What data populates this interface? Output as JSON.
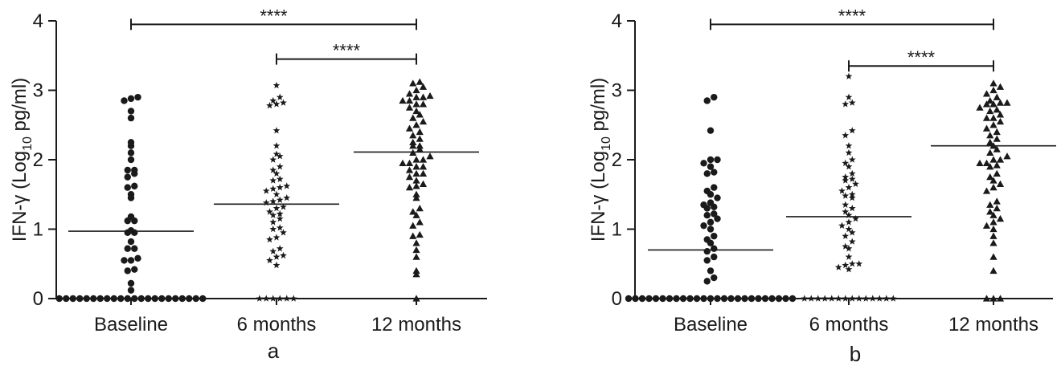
{
  "chart_data": [
    {
      "type": "scatter",
      "panel_label": "a",
      "ylabel_main": "IFN-γ (Log",
      "ylabel_sub": "10",
      "ylabel_tail": " pg/ml)",
      "categories": [
        "Baseline",
        "6 months",
        "12 months"
      ],
      "ylim": [
        0,
        4
      ],
      "yticks": [
        "0",
        "1",
        "2",
        "3",
        "4"
      ],
      "grid": false,
      "legend": "none",
      "significance": [
        {
          "from": 0,
          "to": 2,
          "label": "****",
          "y": 3.95
        },
        {
          "from": 1,
          "to": 2,
          "label": "****",
          "y": 3.45
        }
      ],
      "series": [
        {
          "category": "Baseline",
          "marker": "circle",
          "median": 0.97,
          "values": [
            0,
            0,
            0,
            0,
            0,
            0,
            0,
            0,
            0,
            0,
            0,
            0,
            0,
            0,
            0,
            0,
            0,
            0,
            0,
            0,
            0,
            0,
            0.12,
            0.22,
            0.4,
            0.42,
            0.55,
            0.55,
            0.58,
            0.72,
            0.72,
            0.82,
            0.95,
            0.95,
            0.98,
            1.12,
            1.12,
            1.18,
            1.45,
            1.5,
            1.6,
            1.62,
            1.75,
            1.8,
            1.85,
            1.85,
            2.0,
            2.1,
            2.2,
            2.25,
            2.6,
            2.7,
            2.85,
            2.88,
            2.9
          ]
        },
        {
          "category": "6 months",
          "marker": "star",
          "median": 1.36,
          "values": [
            0,
            0,
            0,
            0,
            0,
            0,
            0.48,
            0.55,
            0.6,
            0.62,
            0.68,
            0.72,
            0.85,
            0.88,
            0.95,
            1.0,
            1.02,
            1.1,
            1.15,
            1.2,
            1.22,
            1.25,
            1.3,
            1.32,
            1.38,
            1.4,
            1.42,
            1.45,
            1.5,
            1.55,
            1.58,
            1.6,
            1.62,
            1.7,
            1.72,
            1.8,
            1.85,
            1.9,
            2.0,
            2.05,
            2.08,
            2.2,
            2.42,
            2.78,
            2.8,
            2.82,
            2.85,
            2.9,
            3.07
          ]
        },
        {
          "category": "12 months",
          "marker": "triangle",
          "median": 2.11,
          "values": [
            0,
            0.35,
            0.4,
            0.6,
            0.7,
            0.8,
            0.9,
            0.92,
            1.05,
            1.1,
            1.2,
            1.25,
            1.3,
            1.45,
            1.5,
            1.6,
            1.62,
            1.65,
            1.7,
            1.75,
            1.8,
            1.8,
            1.85,
            1.9,
            1.9,
            1.95,
            1.95,
            2.0,
            2.0,
            2.05,
            2.1,
            2.15,
            2.2,
            2.2,
            2.25,
            2.3,
            2.35,
            2.4,
            2.45,
            2.5,
            2.55,
            2.6,
            2.65,
            2.7,
            2.75,
            2.8,
            2.8,
            2.85,
            2.85,
            2.9,
            2.9,
            2.92,
            2.95,
            3.0,
            3.05,
            3.1,
            3.12
          ]
        }
      ]
    },
    {
      "type": "scatter",
      "panel_label": "b",
      "ylabel_main": "IFN-γ (Log",
      "ylabel_sub": "10",
      "ylabel_tail": " pg/ml)",
      "categories": [
        "Baseline",
        "6 months",
        "12 months"
      ],
      "ylim": [
        0,
        4
      ],
      "yticks": [
        "0",
        "1",
        "2",
        "3",
        "4"
      ],
      "grid": false,
      "legend": "none",
      "significance": [
        {
          "from": 0,
          "to": 2,
          "label": "****",
          "y": 3.95
        },
        {
          "from": 1,
          "to": 2,
          "label": "****",
          "y": 3.35
        }
      ],
      "series": [
        {
          "category": "Baseline",
          "marker": "circle",
          "median": 0.7,
          "values": [
            0,
            0,
            0,
            0,
            0,
            0,
            0,
            0,
            0,
            0,
            0,
            0,
            0,
            0,
            0,
            0,
            0,
            0,
            0,
            0,
            0,
            0,
            0,
            0,
            0,
            0.25,
            0.3,
            0.4,
            0.55,
            0.6,
            0.68,
            0.72,
            0.8,
            0.85,
            0.9,
            1.0,
            1.05,
            1.1,
            1.15,
            1.2,
            1.22,
            1.3,
            1.32,
            1.35,
            1.38,
            1.45,
            1.5,
            1.55,
            1.6,
            1.8,
            1.82,
            1.9,
            1.95,
            2.0,
            2.0,
            2.42,
            2.85,
            2.9
          ]
        },
        {
          "category": "6 months",
          "marker": "star",
          "median": 1.18,
          "values": [
            0,
            0,
            0,
            0,
            0,
            0,
            0,
            0,
            0,
            0,
            0,
            0,
            0,
            0,
            0.42,
            0.45,
            0.48,
            0.5,
            0.5,
            0.6,
            0.72,
            0.75,
            0.82,
            0.9,
            0.95,
            1.0,
            1.05,
            1.1,
            1.15,
            1.2,
            1.25,
            1.3,
            1.35,
            1.45,
            1.48,
            1.5,
            1.55,
            1.6,
            1.65,
            1.7,
            1.72,
            1.75,
            1.8,
            1.9,
            1.95,
            2.0,
            2.1,
            2.2,
            2.35,
            2.42,
            2.8,
            2.82,
            2.9,
            3.2
          ]
        },
        {
          "category": "12 months",
          "marker": "triangle",
          "median": 2.2,
          "values": [
            0,
            0,
            0,
            0.4,
            0.6,
            0.8,
            0.9,
            1.0,
            1.05,
            1.1,
            1.15,
            1.2,
            1.25,
            1.3,
            1.35,
            1.4,
            1.55,
            1.6,
            1.65,
            1.7,
            1.75,
            1.8,
            1.9,
            1.92,
            1.95,
            1.95,
            2.0,
            2.0,
            2.05,
            2.1,
            2.15,
            2.2,
            2.25,
            2.3,
            2.35,
            2.4,
            2.45,
            2.5,
            2.55,
            2.6,
            2.6,
            2.65,
            2.7,
            2.72,
            2.75,
            2.8,
            2.8,
            2.82,
            2.82,
            2.85,
            2.9,
            2.95,
            3.0,
            3.05,
            3.1
          ]
        }
      ]
    }
  ]
}
